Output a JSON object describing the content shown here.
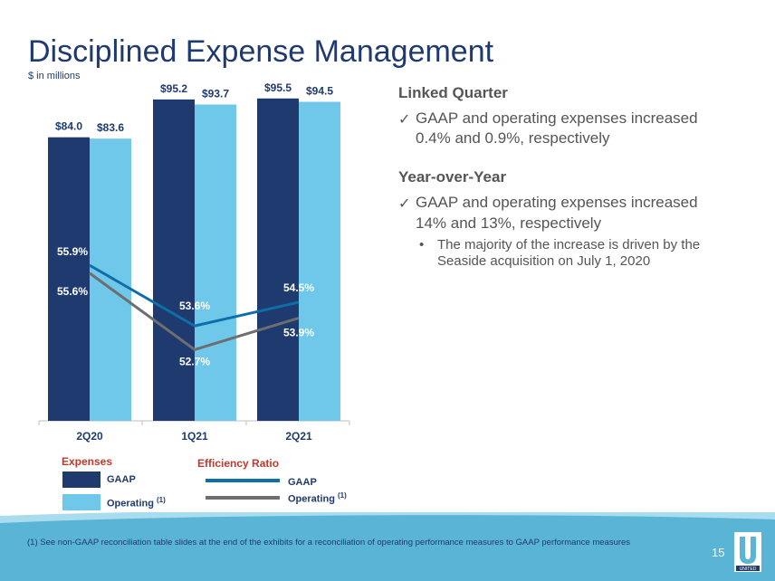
{
  "slide": {
    "title": "Disciplined Expense Management",
    "subtitle": "$ in millions",
    "page_number": "15",
    "footnote": "(1) See non-GAAP reconciliation table slides at the end of the exhibits for a reconciliation of operating performance measures to GAAP performance measures",
    "logo_text": "UNITED"
  },
  "legend": {
    "expenses_head": "Expenses",
    "expenses_gaap": "GAAP",
    "expenses_operating": "Operating",
    "efficiency_head": "Efficiency Ratio",
    "efficiency_gaap": "GAAP",
    "efficiency_operating": "Operating",
    "footnote_marker": "(1)"
  },
  "right_panel": {
    "section1_head": "Linked Quarter",
    "section1_point_line1": "GAAP and operating expenses increased",
    "section1_point_line2": "0.4% and 0.9%, respectively",
    "section2_head": "Year-over-Year",
    "section2_point_line1": "GAAP and operating expenses increased",
    "section2_point_line2": "14% and 13%, respectively",
    "section2_sub_line1": "The majority of the increase is driven by the",
    "section2_sub_line2": "Seaside acquisition on July 1, 2020",
    "check_glyph": "✓",
    "bullet_glyph": "•"
  },
  "colors": {
    "gaap_bar": "#1f3a6e",
    "operating_bar": "#6fc7ea",
    "gaap_line": "#0e6fa8",
    "operating_line": "#6d6e71",
    "accent_red": "#c0392b",
    "footer_band": "#5ab4d6"
  },
  "chart_data": {
    "type": "bar",
    "categories": [
      "2Q20",
      "1Q21",
      "2Q21"
    ],
    "series": [
      {
        "name": "GAAP",
        "values": [
          84.0,
          95.2,
          95.5
        ],
        "labels": [
          "$84.0",
          "$95.2",
          "$95.5"
        ]
      },
      {
        "name": "Operating",
        "values": [
          83.6,
          93.7,
          94.5
        ],
        "labels": [
          "$83.6",
          "$93.7",
          "$94.5"
        ]
      }
    ],
    "lines": [
      {
        "name": "GAAP",
        "values": [
          55.9,
          53.6,
          54.5
        ],
        "labels": [
          "55.9%",
          "53.6%",
          "54.5%"
        ]
      },
      {
        "name": "Operating",
        "values": [
          55.6,
          52.7,
          53.9
        ],
        "labels": [
          "55.6%",
          "52.7%",
          "53.9%"
        ]
      }
    ],
    "ylim": [
      0,
      100
    ],
    "line_ylim": [
      52.3,
      56.9
    ],
    "grid": false,
    "legend_position": "bottom"
  }
}
